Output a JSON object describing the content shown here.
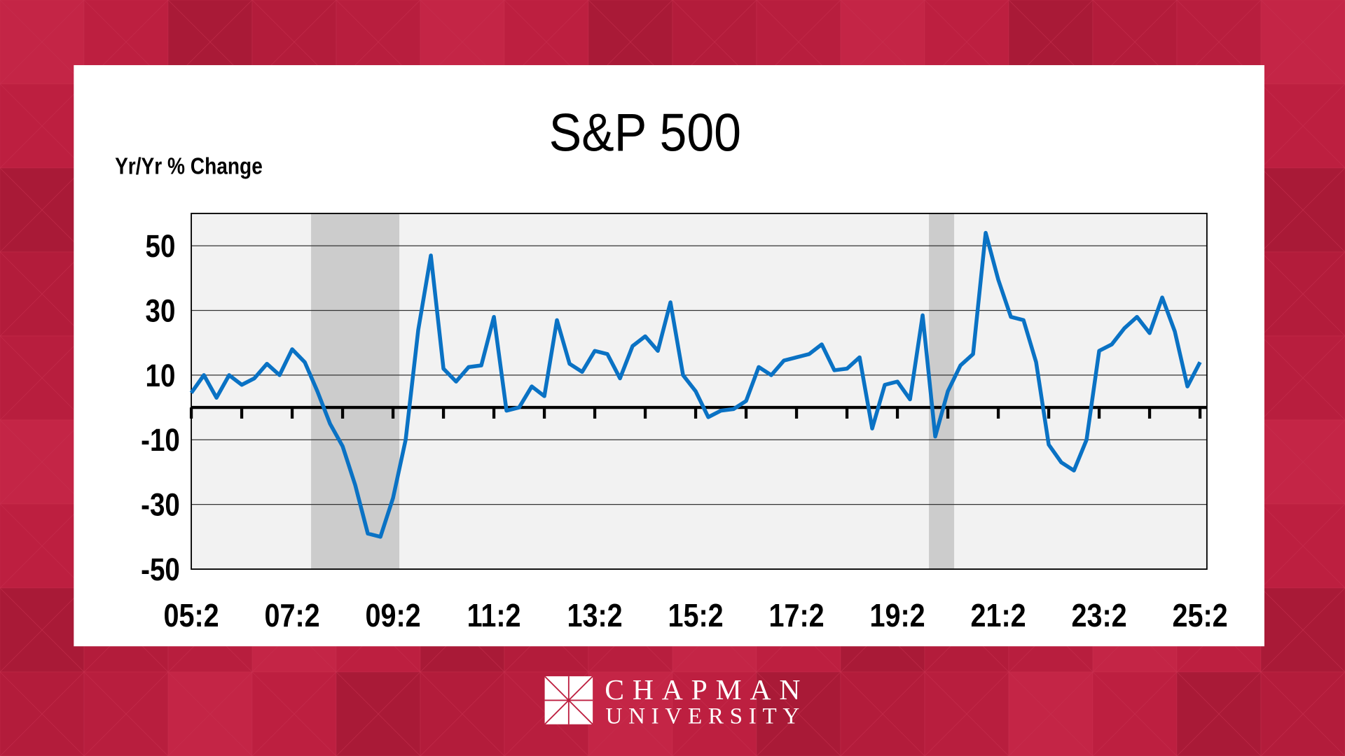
{
  "colors": {
    "background": "#bd1f40",
    "line": "#0a72c4",
    "plot_bg": "#f2f2f2",
    "recession": "#cccccc"
  },
  "logo": {
    "line1": "CHAPMAN",
    "line2": "UNIVERSITY"
  },
  "chart_data": {
    "type": "line",
    "title": "S&P 500",
    "ylabel": "Yr/Yr % Change",
    "xlabel": "",
    "ylim": [
      -50,
      60
    ],
    "yticks": [
      50,
      30,
      10,
      -10,
      -30,
      -50
    ],
    "ytick_labels": [
      "50",
      "30",
      "10",
      "-10",
      "-30",
      "-50"
    ],
    "xtick_labels": [
      "05:2",
      "07:2",
      "09:2",
      "11:2",
      "13:2",
      "15:2",
      "17:2",
      "19:2",
      "21:2",
      "23:2",
      "25:2"
    ],
    "grid": true,
    "recessions": [
      {
        "start": "07:4",
        "end": "09:2"
      },
      {
        "start": "20:1",
        "end": "20:2"
      }
    ],
    "x_start": "05:2",
    "x_end": "25:2",
    "series": [
      {
        "values": [
          4.5,
          10,
          3,
          10,
          7,
          9,
          13.5,
          10,
          18,
          14,
          5,
          -5,
          -12,
          -24,
          -39,
          -40,
          -28,
          -10,
          24,
          47,
          12,
          8,
          12.5,
          13,
          28,
          -1,
          0,
          6.5,
          3.5,
          27,
          13.5,
          11,
          17.5,
          16.5,
          9,
          19,
          22,
          17.5,
          32.5,
          10,
          5,
          -3,
          -1,
          -0.5,
          2,
          12.5,
          10,
          14.5,
          15.5,
          16.5,
          19.5,
          11.5,
          12,
          15.5,
          -6.5,
          7,
          8,
          2.5,
          28.5,
          -9,
          5,
          13,
          16.5,
          54,
          39.5,
          28,
          27,
          14,
          -11.5,
          -17,
          -19.5,
          -10,
          17.5,
          19.5,
          24.5,
          28,
          23,
          34,
          23.5,
          6.5,
          14
        ]
      }
    ]
  }
}
